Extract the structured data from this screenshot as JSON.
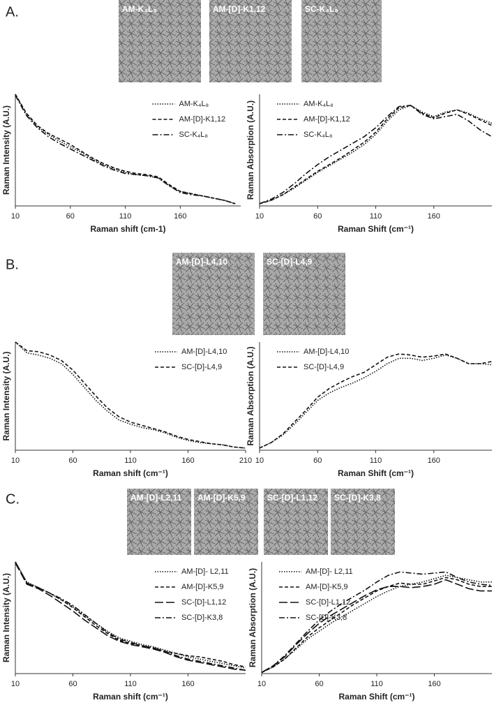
{
  "panels": [
    {
      "label": "A.",
      "images": [
        "AM-K₄L₈",
        "AM-[D]-K1,12",
        "SC-K₄L₈"
      ]
    },
    {
      "label": "B.",
      "images": [
        "AM-[D]-L4,10",
        "SC-[D]-L4,9"
      ]
    },
    {
      "label": "C.",
      "images": [
        "AM-[D]-L2,11",
        "AM-[D]-K5,9",
        "SC-[D]-L1,12",
        "SC-[D]-K3,8"
      ]
    }
  ],
  "chart_data": [
    {
      "type": "line",
      "xlabel": "Raman shift (cm-1)",
      "ylabel": "Raman Intensity (A.U.)",
      "legend": "upper center",
      "x": [
        10,
        20,
        30,
        40,
        50,
        60,
        70,
        80,
        90,
        100,
        110,
        120,
        130,
        140,
        150,
        160,
        170,
        180,
        190,
        200,
        210
      ],
      "xlim": [
        10,
        215
      ],
      "xticks": [
        10,
        60,
        110,
        160
      ],
      "ylim": [
        0,
        1
      ],
      "series": [
        {
          "name": "AM-K₄L₈",
          "color": "#111",
          "style": "dotted",
          "values": [
            1.0,
            0.82,
            0.71,
            0.64,
            0.58,
            0.53,
            0.48,
            0.42,
            0.37,
            0.33,
            0.3,
            0.28,
            0.27,
            0.25,
            0.18,
            0.13,
            0.11,
            0.09,
            0.07,
            0.05,
            0.02
          ]
        },
        {
          "name": "AM-[D]-K1,12",
          "color": "#111",
          "style": "dashed",
          "values": [
            1.0,
            0.83,
            0.72,
            0.65,
            0.6,
            0.55,
            0.49,
            0.43,
            0.38,
            0.34,
            0.31,
            0.29,
            0.28,
            0.26,
            0.19,
            0.13,
            0.11,
            0.09,
            0.07,
            0.05,
            0.02
          ]
        },
        {
          "name": "SC-K₄L₈",
          "color": "#111",
          "style": "dashdot",
          "values": [
            0.99,
            0.81,
            0.7,
            0.62,
            0.56,
            0.51,
            0.46,
            0.41,
            0.36,
            0.32,
            0.29,
            0.28,
            0.27,
            0.25,
            0.18,
            0.12,
            0.1,
            0.09,
            0.07,
            0.05,
            0.02
          ]
        }
      ]
    },
    {
      "type": "line",
      "xlabel": "Raman Shift (cm⁻¹)",
      "ylabel": "Raman Absorption (A.U.)",
      "legend": "upper left",
      "x": [
        10,
        20,
        30,
        40,
        50,
        60,
        70,
        80,
        90,
        100,
        110,
        120,
        130,
        140,
        150,
        160,
        170,
        180,
        190,
        200,
        210
      ],
      "xlim": [
        10,
        210
      ],
      "xticks": [
        10,
        60,
        110,
        160
      ],
      "ylim": [
        0,
        1
      ],
      "series": [
        {
          "name": "AM-K₄L₈",
          "color": "#111",
          "style": "dotted",
          "values": [
            0.02,
            0.05,
            0.1,
            0.16,
            0.23,
            0.3,
            0.36,
            0.42,
            0.48,
            0.55,
            0.64,
            0.76,
            0.86,
            0.9,
            0.84,
            0.8,
            0.84,
            0.86,
            0.83,
            0.78,
            0.74
          ]
        },
        {
          "name": "AM-[D]-K1,12",
          "color": "#111",
          "style": "dashed",
          "values": [
            0.02,
            0.05,
            0.1,
            0.17,
            0.24,
            0.31,
            0.37,
            0.43,
            0.5,
            0.57,
            0.66,
            0.78,
            0.88,
            0.9,
            0.83,
            0.79,
            0.83,
            0.86,
            0.82,
            0.77,
            0.72
          ]
        },
        {
          "name": "SC-K₄L₈",
          "color": "#111",
          "style": "dashdot",
          "values": [
            0.02,
            0.06,
            0.12,
            0.2,
            0.29,
            0.37,
            0.44,
            0.5,
            0.56,
            0.62,
            0.7,
            0.8,
            0.89,
            0.9,
            0.82,
            0.78,
            0.8,
            0.82,
            0.76,
            0.68,
            0.62
          ]
        }
      ]
    },
    {
      "type": "line",
      "xlabel": "Raman shift (cm⁻¹)",
      "ylabel": "Raman Intensity (A.U.)",
      "legend": "upper center",
      "x": [
        10,
        20,
        30,
        40,
        50,
        60,
        70,
        80,
        90,
        100,
        110,
        120,
        130,
        140,
        150,
        160,
        170,
        180,
        190,
        200,
        210
      ],
      "xlim": [
        10,
        210
      ],
      "xticks": [
        10,
        60,
        110,
        160,
        210
      ],
      "ylim": [
        0,
        1
      ],
      "series": [
        {
          "name": "AM-[D]-L4,10",
          "color": "#111",
          "style": "dotted",
          "values": [
            1.0,
            0.9,
            0.88,
            0.85,
            0.8,
            0.7,
            0.58,
            0.46,
            0.36,
            0.28,
            0.24,
            0.21,
            0.19,
            0.16,
            0.12,
            0.09,
            0.07,
            0.06,
            0.05,
            0.03,
            0.02
          ]
        },
        {
          "name": "SC-[D]-L4,9",
          "color": "#111",
          "style": "dashed",
          "values": [
            1.0,
            0.92,
            0.91,
            0.88,
            0.83,
            0.74,
            0.62,
            0.5,
            0.39,
            0.31,
            0.26,
            0.23,
            0.2,
            0.17,
            0.13,
            0.1,
            0.08,
            0.06,
            0.05,
            0.03,
            0.02
          ]
        }
      ]
    },
    {
      "type": "line",
      "xlabel": "Raman Shift (cm⁻¹)",
      "ylabel": "Raman Absorption (A.U.)",
      "legend": "upper left",
      "x": [
        10,
        20,
        30,
        40,
        50,
        60,
        70,
        80,
        90,
        100,
        110,
        120,
        130,
        140,
        150,
        160,
        170,
        180,
        190,
        200,
        210
      ],
      "xlim": [
        10,
        210
      ],
      "xticks": [
        10,
        60,
        110,
        160
      ],
      "ylim": [
        0,
        1
      ],
      "series": [
        {
          "name": "AM-[D]-L4,10",
          "color": "#111",
          "style": "dotted",
          "values": [
            0.02,
            0.07,
            0.14,
            0.24,
            0.35,
            0.46,
            0.53,
            0.58,
            0.62,
            0.67,
            0.73,
            0.8,
            0.85,
            0.85,
            0.83,
            0.85,
            0.88,
            0.85,
            0.8,
            0.8,
            0.79
          ]
        },
        {
          "name": "SC-[D]-L4,9",
          "color": "#111",
          "style": "dashed",
          "values": [
            0.02,
            0.07,
            0.15,
            0.26,
            0.37,
            0.49,
            0.57,
            0.63,
            0.68,
            0.72,
            0.79,
            0.86,
            0.89,
            0.88,
            0.86,
            0.87,
            0.89,
            0.85,
            0.8,
            0.8,
            0.82
          ]
        }
      ]
    },
    {
      "type": "line",
      "xlabel": "Raman shift (cm⁻¹)",
      "ylabel": "Raman Intensity (A.U.)",
      "legend": "upper center",
      "x": [
        10,
        20,
        30,
        40,
        50,
        60,
        70,
        80,
        90,
        100,
        110,
        120,
        130,
        140,
        150,
        160,
        170,
        180,
        190,
        200,
        210
      ],
      "xlim": [
        10,
        210
      ],
      "xticks": [
        10,
        60,
        110,
        160
      ],
      "ylim": [
        0,
        1
      ],
      "series": [
        {
          "name": "AM-[D]- L2,11",
          "color": "#111",
          "style": "dotted",
          "values": [
            1.0,
            0.82,
            0.77,
            0.72,
            0.66,
            0.6,
            0.52,
            0.45,
            0.38,
            0.32,
            0.29,
            0.26,
            0.24,
            0.21,
            0.18,
            0.15,
            0.13,
            0.11,
            0.09,
            0.07,
            0.05
          ]
        },
        {
          "name": "AM-[D]-K5,9",
          "color": "#111",
          "style": "dashed",
          "values": [
            1.0,
            0.81,
            0.77,
            0.72,
            0.66,
            0.59,
            0.51,
            0.43,
            0.36,
            0.3,
            0.27,
            0.25,
            0.23,
            0.2,
            0.18,
            0.16,
            0.15,
            0.13,
            0.11,
            0.08,
            0.06
          ]
        },
        {
          "name": "SC-[D]-L1,12",
          "color": "#111",
          "style": "longdash",
          "values": [
            0.99,
            0.8,
            0.76,
            0.7,
            0.63,
            0.56,
            0.48,
            0.41,
            0.34,
            0.29,
            0.26,
            0.24,
            0.22,
            0.19,
            0.15,
            0.12,
            0.1,
            0.08,
            0.06,
            0.04,
            0.03
          ]
        },
        {
          "name": "SC-[D]-K3,8",
          "color": "#111",
          "style": "dashdot",
          "values": [
            1.0,
            0.81,
            0.77,
            0.72,
            0.67,
            0.61,
            0.53,
            0.45,
            0.37,
            0.31,
            0.28,
            0.25,
            0.23,
            0.2,
            0.16,
            0.13,
            0.11,
            0.09,
            0.07,
            0.05,
            0.03
          ]
        }
      ]
    },
    {
      "type": "line",
      "xlabel": "Raman Shift (cm⁻¹)",
      "ylabel": "Raman Absorption (A.U.)",
      "legend": "upper left",
      "x": [
        10,
        20,
        30,
        40,
        50,
        60,
        70,
        80,
        90,
        100,
        110,
        120,
        130,
        140,
        150,
        160,
        170,
        180,
        190,
        200,
        210
      ],
      "xlim": [
        10,
        210
      ],
      "xticks": [
        10,
        60,
        110,
        160
      ],
      "ylim": [
        0,
        1
      ],
      "series": [
        {
          "name": "AM-[D]- L2,11",
          "color": "#111",
          "style": "dotted",
          "values": [
            0.01,
            0.06,
            0.13,
            0.22,
            0.31,
            0.38,
            0.45,
            0.51,
            0.57,
            0.63,
            0.69,
            0.74,
            0.78,
            0.8,
            0.82,
            0.85,
            0.88,
            0.86,
            0.84,
            0.82,
            0.82
          ]
        },
        {
          "name": "AM-[D]-K5,9",
          "color": "#111",
          "style": "dashed",
          "values": [
            0.01,
            0.06,
            0.13,
            0.23,
            0.33,
            0.41,
            0.48,
            0.55,
            0.62,
            0.68,
            0.74,
            0.78,
            0.81,
            0.8,
            0.8,
            0.83,
            0.86,
            0.84,
            0.8,
            0.78,
            0.78
          ]
        },
        {
          "name": "SC-[D]-L1,12",
          "color": "#111",
          "style": "longdash",
          "values": [
            0.01,
            0.07,
            0.15,
            0.26,
            0.36,
            0.45,
            0.52,
            0.58,
            0.64,
            0.7,
            0.75,
            0.78,
            0.78,
            0.77,
            0.78,
            0.8,
            0.84,
            0.8,
            0.76,
            0.74,
            0.74
          ]
        },
        {
          "name": "SC-[D]-K3,8",
          "color": "#111",
          "style": "dashdot",
          "values": [
            0.01,
            0.07,
            0.16,
            0.27,
            0.38,
            0.48,
            0.56,
            0.63,
            0.69,
            0.75,
            0.82,
            0.88,
            0.91,
            0.9,
            0.89,
            0.9,
            0.91,
            0.86,
            0.82,
            0.8,
            0.79
          ]
        }
      ]
    }
  ]
}
